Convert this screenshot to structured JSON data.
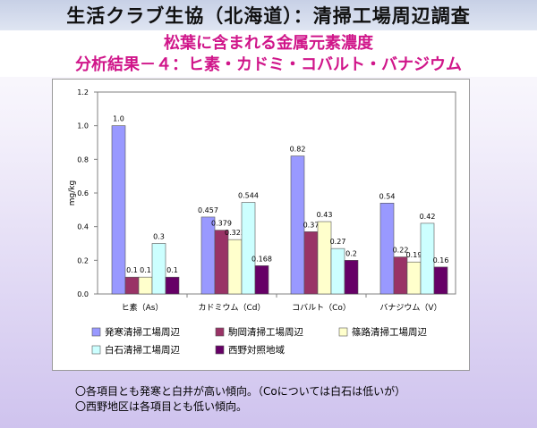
{
  "header": {
    "title": "生活クラブ生協（北海道）：清掃工場周辺調査",
    "subtitle": "松葉に含まれる金属元素濃度",
    "result_label": "分析結果－４：ヒ素・カドミ・コバルト・バナジウム"
  },
  "notes": [
    "〇各項目とも発寒と白井が高い傾向。（Coについては白石は低いが）",
    "〇西野地区は各項目とも低い傾向。"
  ],
  "chart_data": {
    "type": "bar",
    "ylabel": "mg/kg",
    "ylim": [
      0,
      1.2
    ],
    "yticks": [
      "0.0",
      "0.2",
      "0.4",
      "0.6",
      "0.8",
      "1.0",
      "1.2"
    ],
    "categories": [
      "ヒ素（As）",
      "カドミウム（Cd）",
      "コバルト（Co）",
      "バナジウム（V）"
    ],
    "series": [
      {
        "name": "発寒清掃工場周辺",
        "color": "#9999ff",
        "values": [
          1.0,
          0.457,
          0.82,
          0.54
        ],
        "labels": [
          "1.0",
          "0.457",
          "0.82",
          "0.54"
        ]
      },
      {
        "name": "駒岡清掃工場周辺",
        "color": "#993366",
        "values": [
          0.1,
          0.379,
          0.37,
          0.22
        ],
        "labels": [
          "0.1",
          "0.379",
          "0.37",
          "0.22"
        ]
      },
      {
        "name": "篠路清掃工場周辺",
        "color": "#ffffcc",
        "values": [
          0.1,
          0.323,
          0.43,
          0.19
        ],
        "labels": [
          "0.1",
          "0.323",
          "0.43",
          "0.19"
        ]
      },
      {
        "name": "白石清掃工場周辺",
        "color": "#ccffff",
        "values": [
          0.3,
          0.544,
          0.27,
          0.42
        ],
        "labels": [
          "0.3",
          "0.544",
          "0.27",
          "0.42"
        ]
      },
      {
        "name": "西野対照地域",
        "color": "#660066",
        "values": [
          0.1,
          0.168,
          0.2,
          0.16
        ],
        "labels": [
          "0.1",
          "0.168",
          "0.2",
          "0.16"
        ]
      }
    ],
    "legend_position": "bottom",
    "grid": false
  }
}
